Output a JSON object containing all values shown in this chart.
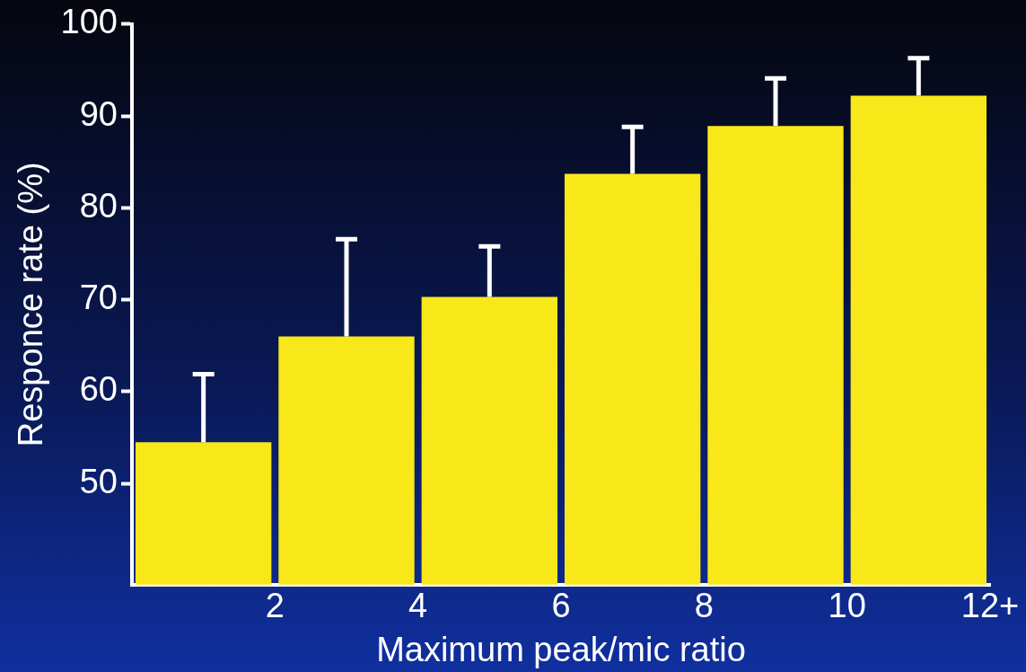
{
  "chart_data": {
    "type": "histogram",
    "xlabel": "Maximum peak/mic ratio",
    "ylabel": "Responce rate (%)",
    "bins": [
      0,
      2,
      4,
      6,
      8,
      10,
      12
    ],
    "values": [
      54.5,
      66,
      70.3,
      83.7,
      88.9,
      92.2
    ],
    "errors": [
      [
        54.5,
        61.9
      ],
      [
        66,
        76.6
      ],
      [
        70.3,
        75.8
      ],
      [
        83.7,
        88.8
      ],
      [
        88.9,
        94.1
      ],
      [
        92.2,
        96.3
      ]
    ],
    "color": "#f8e81a",
    "xlim": [
      0,
      12
    ],
    "xticks": [
      {
        "value": 0,
        "label": null
      },
      2,
      4,
      6,
      8,
      10,
      {
        "value": 12,
        "label": "12+"
      }
    ],
    "ylim": [
      39,
      100
    ],
    "yticks": [
      50,
      60,
      70,
      80,
      90,
      100
    ],
    "grid": false,
    "legend": false
  }
}
